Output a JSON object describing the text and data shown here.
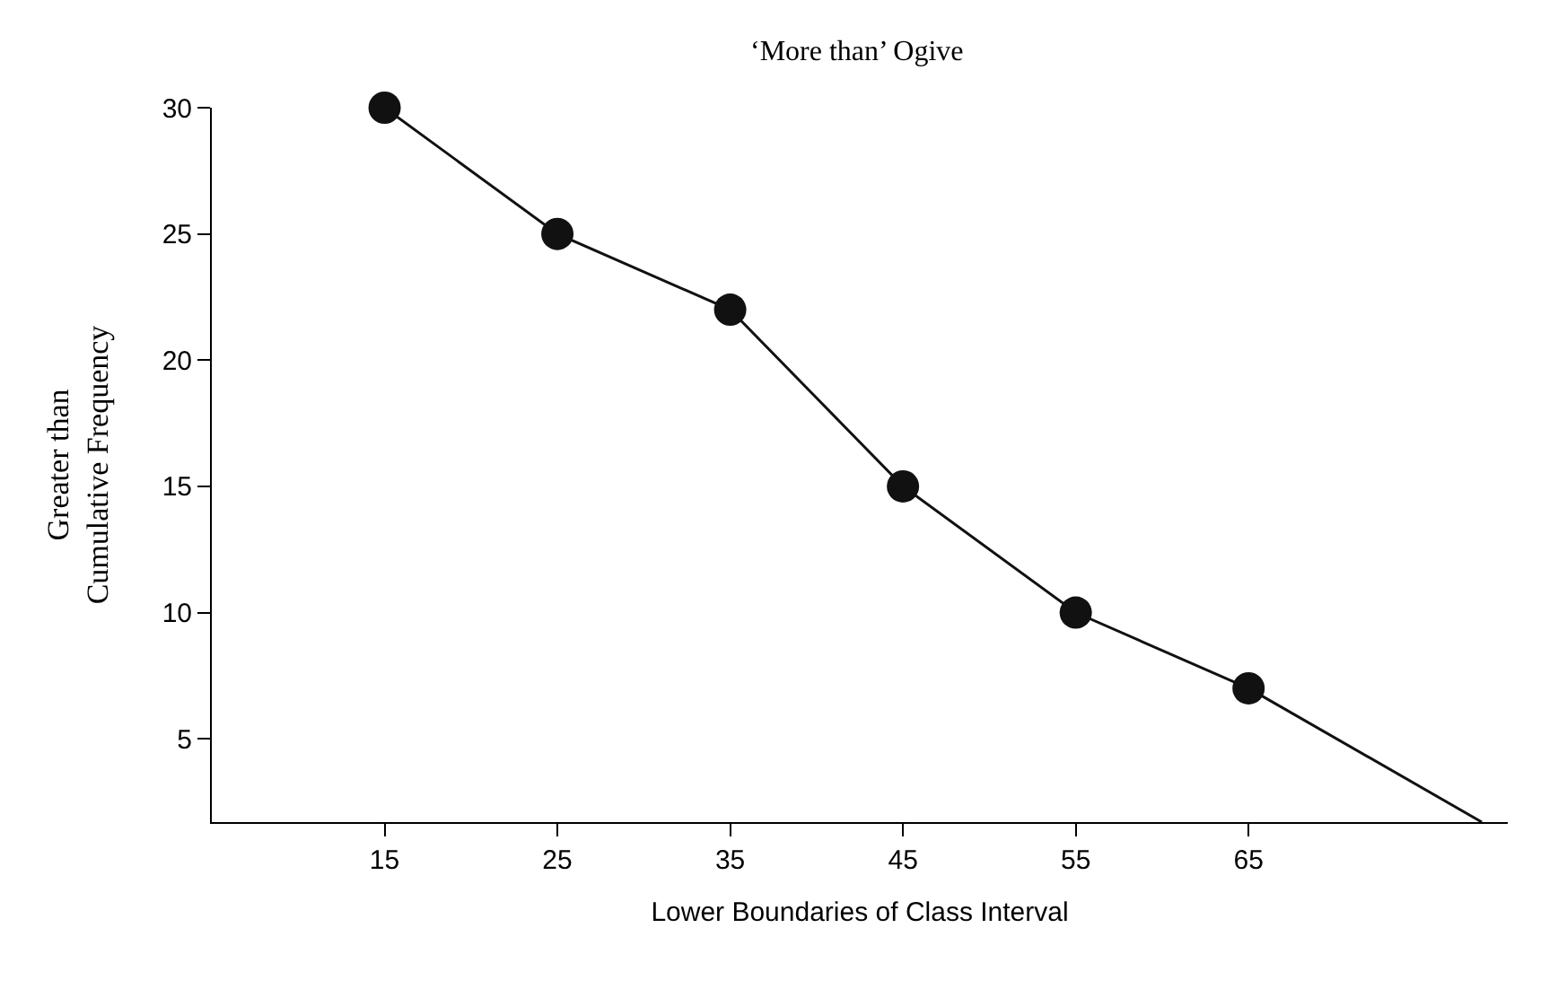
{
  "chart_data": {
    "type": "line",
    "title": "‘More than’ Ogive",
    "xlabel": "Lower Boundaries of Class Interval",
    "ylabel": "Greater than\nCumulative Frequency",
    "series": [
      {
        "x": [
          15,
          25,
          35,
          45,
          55,
          65
        ],
        "values": [
          30,
          25,
          22,
          15,
          10,
          7
        ],
        "color": "#111111",
        "marker": "circle"
      },
      {
        "x": [
          65,
          78.5
        ],
        "values": [
          7,
          1.7
        ],
        "color": "#111111",
        "marker": "none"
      }
    ],
    "xlim": [
      5,
      80
    ],
    "xticks": [
      15,
      25,
      35,
      45,
      55,
      65
    ],
    "ylim": [
      1.7,
      30
    ],
    "yticks": [
      5,
      10,
      15,
      20,
      25,
      {
        "value": 30,
        "label": "30"
      }
    ],
    "line_style": "solid"
  }
}
